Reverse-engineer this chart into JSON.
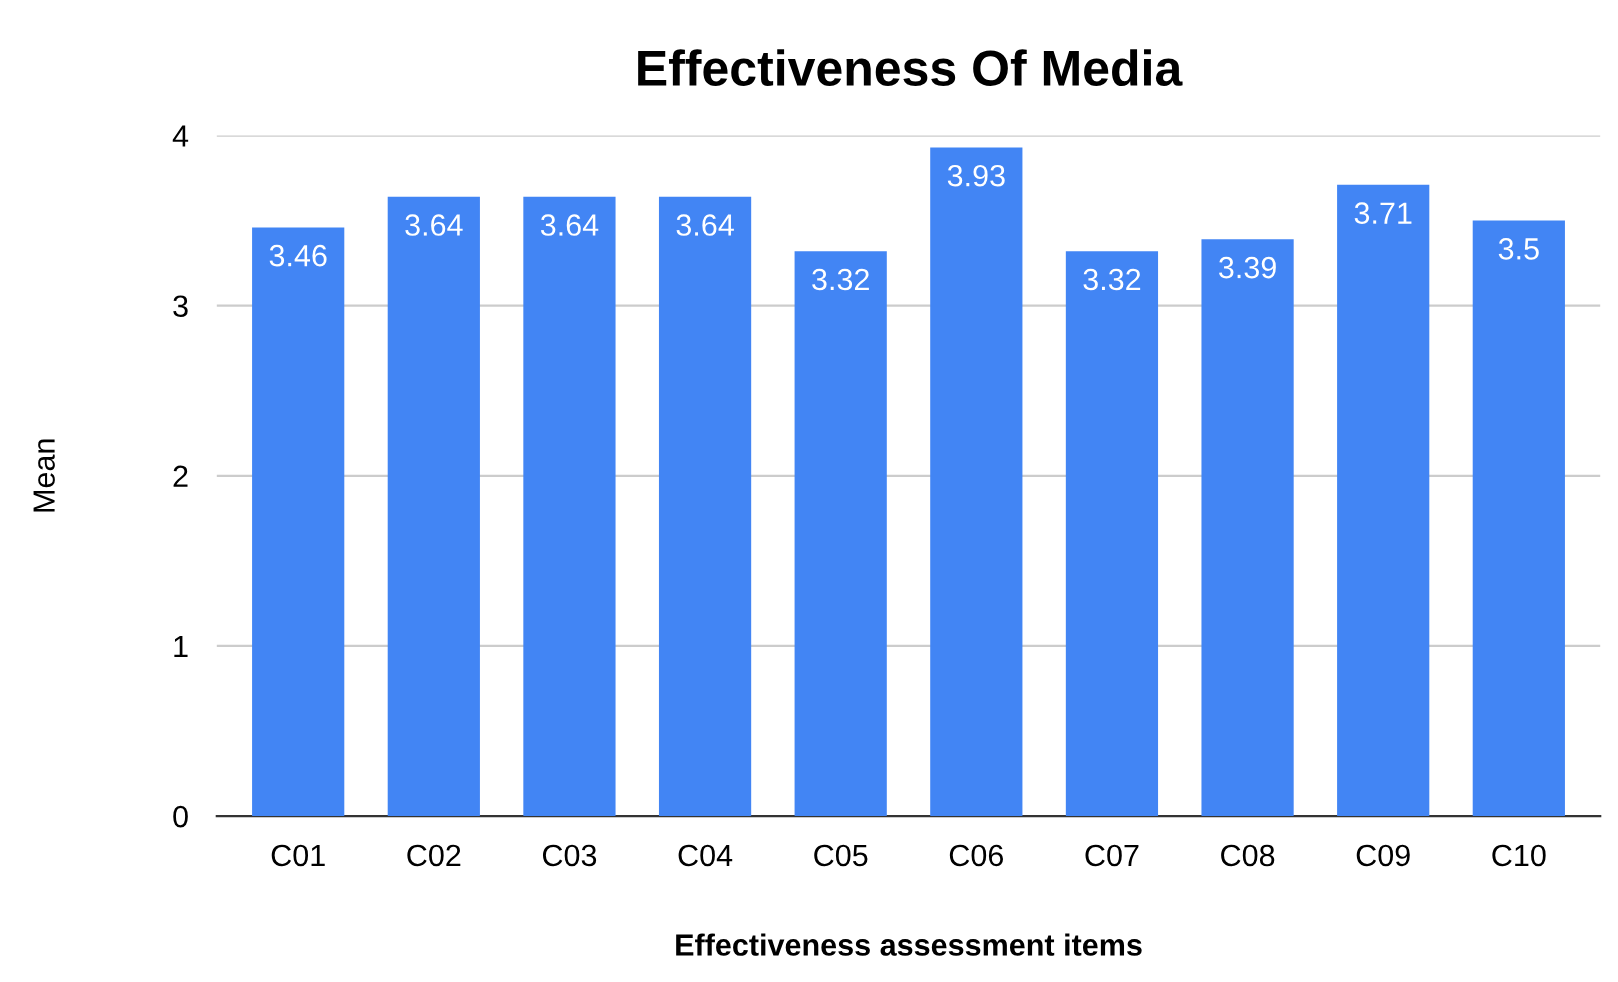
{
  "chart_data": {
    "type": "bar",
    "title": "Effectiveness Of Media",
    "xlabel": "Effectiveness assessment items",
    "ylabel": "Mean",
    "categories": [
      "C01",
      "C02",
      "C03",
      "C04",
      "C05",
      "C06",
      "C07",
      "C08",
      "C09",
      "C10"
    ],
    "values": [
      3.46,
      3.64,
      3.64,
      3.64,
      3.32,
      3.93,
      3.32,
      3.39,
      3.71,
      3.5
    ],
    "color": "#4285f4",
    "ylim": [
      0,
      4
    ],
    "yticks": [
      0,
      1,
      2,
      3,
      4
    ],
    "grid": "y",
    "data_labels": true
  }
}
